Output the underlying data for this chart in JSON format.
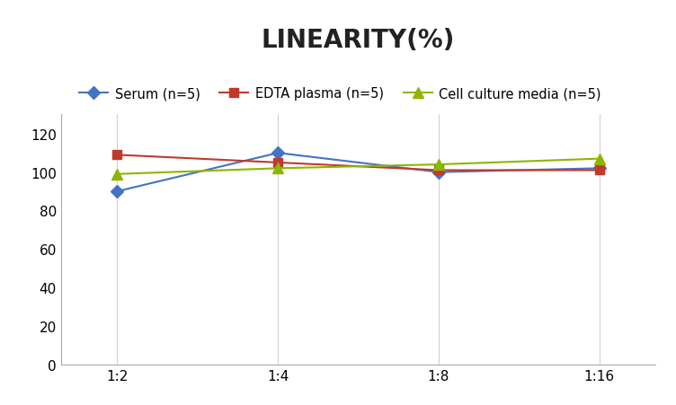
{
  "title": "LINEARITY(%)",
  "x_labels": [
    "1:2",
    "1:4",
    "1:8",
    "1:16"
  ],
  "x_positions": [
    0,
    1,
    2,
    3
  ],
  "series": [
    {
      "label": "Serum (n=5)",
      "values": [
        90,
        110,
        100,
        102
      ],
      "color": "#4472C4",
      "marker": "D",
      "markersize": 7,
      "linewidth": 1.5
    },
    {
      "label": "EDTA plasma (n=5)",
      "values": [
        109,
        105,
        101,
        101
      ],
      "color": "#C0392B",
      "marker": "s",
      "markersize": 7,
      "linewidth": 1.5
    },
    {
      "label": "Cell culture media (n=5)",
      "values": [
        99,
        102,
        104,
        107
      ],
      "color": "#8DB600",
      "marker": "^",
      "markersize": 8,
      "linewidth": 1.5
    }
  ],
  "ylim": [
    0,
    130
  ],
  "yticks": [
    0,
    20,
    40,
    60,
    80,
    100,
    120
  ],
  "grid_color": "#D0D0D0",
  "background_color": "#FFFFFF",
  "title_fontsize": 20,
  "title_fontweight": "bold",
  "legend_fontsize": 10.5,
  "tick_fontsize": 11
}
